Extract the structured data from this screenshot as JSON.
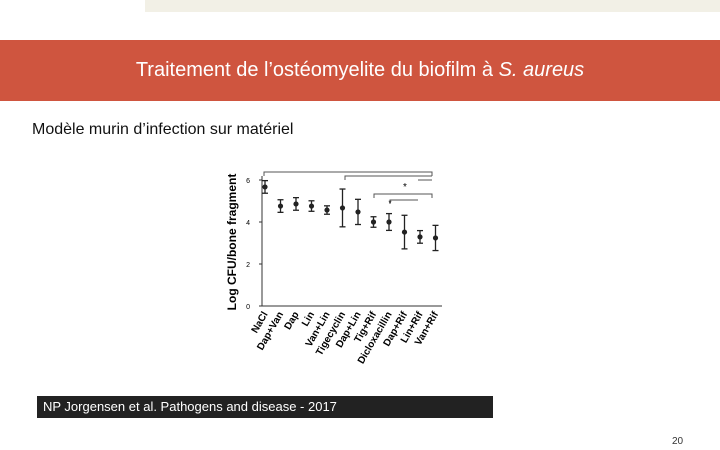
{
  "title": "Traitement de l’ostéomyelite du biofilm à",
  "title_italic": "S. aureus",
  "subtitle": "Modèle murin d’infection sur matériel",
  "caption": "NP Jorgensen et al. Pathogens and disease - 2017",
  "page_number": 20,
  "chart_data": {
    "type": "errorbar",
    "y_label": "Log CFU/bone fragment",
    "categories": [
      "NaCl",
      "Dap+Van",
      "Dap",
      "Lin",
      "Van+Lin",
      "Tigecyclin",
      "Dap+Lin",
      "Tig+Rif",
      "Dicloxacillin",
      "Dap+Rif",
      "Lin+Rif",
      "Van+Rif"
    ],
    "values": [
      5.67,
      4.76,
      4.86,
      4.76,
      4.57,
      4.67,
      4.48,
      4.0,
      4.0,
      3.52,
      3.29,
      3.24
    ],
    "errors": [
      0.3,
      0.3,
      0.3,
      0.25,
      0.2,
      0.9,
      0.6,
      0.25,
      0.4,
      0.8,
      0.3,
      0.6
    ],
    "color": "#222222",
    "ylim": [
      0,
      6
    ],
    "yticks": [
      0,
      2,
      4,
      6
    ],
    "annotations": [
      "*",
      "*"
    ]
  }
}
